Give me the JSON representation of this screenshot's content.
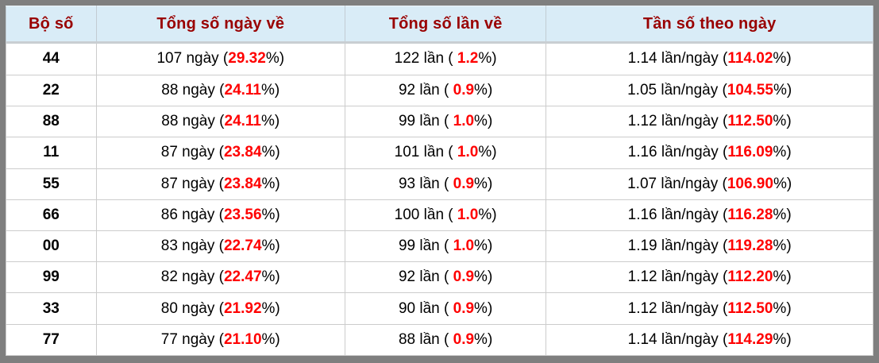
{
  "chart_data": {
    "type": "table",
    "title": "",
    "columns": [
      "Bộ số",
      "Tổng số ngày về",
      "Tổng số lần về",
      "Tần số theo ngày"
    ],
    "rows": [
      {
        "pair": "44",
        "days": 107,
        "days_pct": 29.32,
        "times": 122,
        "times_pct": 1.2,
        "freq_per_day": 1.14,
        "freq_pct": 114.02
      },
      {
        "pair": "22",
        "days": 88,
        "days_pct": 24.11,
        "times": 92,
        "times_pct": 0.9,
        "freq_per_day": 1.05,
        "freq_pct": 104.55
      },
      {
        "pair": "88",
        "days": 88,
        "days_pct": 24.11,
        "times": 99,
        "times_pct": 1.0,
        "freq_per_day": 1.12,
        "freq_pct": 112.5
      },
      {
        "pair": "11",
        "days": 87,
        "days_pct": 23.84,
        "times": 101,
        "times_pct": 1.0,
        "freq_per_day": 1.16,
        "freq_pct": 116.09
      },
      {
        "pair": "55",
        "days": 87,
        "days_pct": 23.84,
        "times": 93,
        "times_pct": 0.9,
        "freq_per_day": 1.07,
        "freq_pct": 106.9
      },
      {
        "pair": "66",
        "days": 86,
        "days_pct": 23.56,
        "times": 100,
        "times_pct": 1.0,
        "freq_per_day": 1.16,
        "freq_pct": 116.28
      },
      {
        "pair": "00",
        "days": 83,
        "days_pct": 22.74,
        "times": 99,
        "times_pct": 1.0,
        "freq_per_day": 1.19,
        "freq_pct": 119.28
      },
      {
        "pair": "99",
        "days": 82,
        "days_pct": 22.47,
        "times": 92,
        "times_pct": 0.9,
        "freq_per_day": 1.12,
        "freq_pct": 112.2
      },
      {
        "pair": "33",
        "days": 80,
        "days_pct": 21.92,
        "times": 90,
        "times_pct": 0.9,
        "freq_per_day": 1.12,
        "freq_pct": 112.5
      },
      {
        "pair": "77",
        "days": 77,
        "days_pct": 21.1,
        "times": 88,
        "times_pct": 0.9,
        "freq_per_day": 1.14,
        "freq_pct": 114.29
      }
    ]
  },
  "table": {
    "headers": [
      "Bộ số",
      "Tổng số ngày về",
      "Tổng số lần về",
      "Tần số theo ngày"
    ],
    "rows": [
      {
        "number": "44",
        "days_pre": "107 ngày (",
        "days_pct": "29.32",
        "days_post": "%)",
        "times_pre": "122 lần ( ",
        "times_pct": "1.2",
        "times_post": "%)",
        "freq_pre": "1.14 lần/ngày (",
        "freq_pct": "114.02",
        "freq_post": "%)"
      },
      {
        "number": "22",
        "days_pre": "88 ngày (",
        "days_pct": "24.11",
        "days_post": "%)",
        "times_pre": "92 lần ( ",
        "times_pct": "0.9",
        "times_post": "%)",
        "freq_pre": "1.05 lần/ngày (",
        "freq_pct": "104.55",
        "freq_post": "%)"
      },
      {
        "number": "88",
        "days_pre": "88 ngày (",
        "days_pct": "24.11",
        "days_post": "%)",
        "times_pre": "99 lần ( ",
        "times_pct": "1.0",
        "times_post": "%)",
        "freq_pre": "1.12 lần/ngày (",
        "freq_pct": "112.50",
        "freq_post": "%)"
      },
      {
        "number": "11",
        "days_pre": "87 ngày (",
        "days_pct": "23.84",
        "days_post": "%)",
        "times_pre": "101 lần ( ",
        "times_pct": "1.0",
        "times_post": "%)",
        "freq_pre": "1.16 lần/ngày (",
        "freq_pct": "116.09",
        "freq_post": "%)"
      },
      {
        "number": "55",
        "days_pre": "87 ngày (",
        "days_pct": "23.84",
        "days_post": "%)",
        "times_pre": "93 lần ( ",
        "times_pct": "0.9",
        "times_post": "%)",
        "freq_pre": "1.07 lần/ngày (",
        "freq_pct": "106.90",
        "freq_post": "%)"
      },
      {
        "number": "66",
        "days_pre": "86 ngày (",
        "days_pct": "23.56",
        "days_post": "%)",
        "times_pre": "100 lần ( ",
        "times_pct": "1.0",
        "times_post": "%)",
        "freq_pre": "1.16 lần/ngày (",
        "freq_pct": "116.28",
        "freq_post": "%)"
      },
      {
        "number": "00",
        "days_pre": "83 ngày (",
        "days_pct": "22.74",
        "days_post": "%)",
        "times_pre": "99 lần ( ",
        "times_pct": "1.0",
        "times_post": "%)",
        "freq_pre": "1.19 lần/ngày (",
        "freq_pct": "119.28",
        "freq_post": "%)"
      },
      {
        "number": "99",
        "days_pre": "82 ngày (",
        "days_pct": "22.47",
        "days_post": "%)",
        "times_pre": "92 lần ( ",
        "times_pct": "0.9",
        "times_post": "%)",
        "freq_pre": "1.12 lần/ngày (",
        "freq_pct": "112.20",
        "freq_post": "%)"
      },
      {
        "number": "33",
        "days_pre": "80 ngày (",
        "days_pct": "21.92",
        "days_post": "%)",
        "times_pre": "90 lần ( ",
        "times_pct": "0.9",
        "times_post": "%)",
        "freq_pre": "1.12 lần/ngày (",
        "freq_pct": "112.50",
        "freq_post": "%)"
      },
      {
        "number": "77",
        "days_pre": "77 ngày (",
        "days_pct": "21.10",
        "days_post": "%)",
        "times_pre": "88 lần ( ",
        "times_pct": "0.9",
        "times_post": "%)",
        "freq_pre": "1.14 lần/ngày (",
        "freq_pct": "114.29",
        "freq_post": "%)"
      }
    ]
  },
  "colors": {
    "frame_gray": "#7f7f7f",
    "header_bg": "#d9ecf7",
    "header_text": "#990000",
    "highlight_red": "#ff0000",
    "border_light": "#cccccc"
  }
}
